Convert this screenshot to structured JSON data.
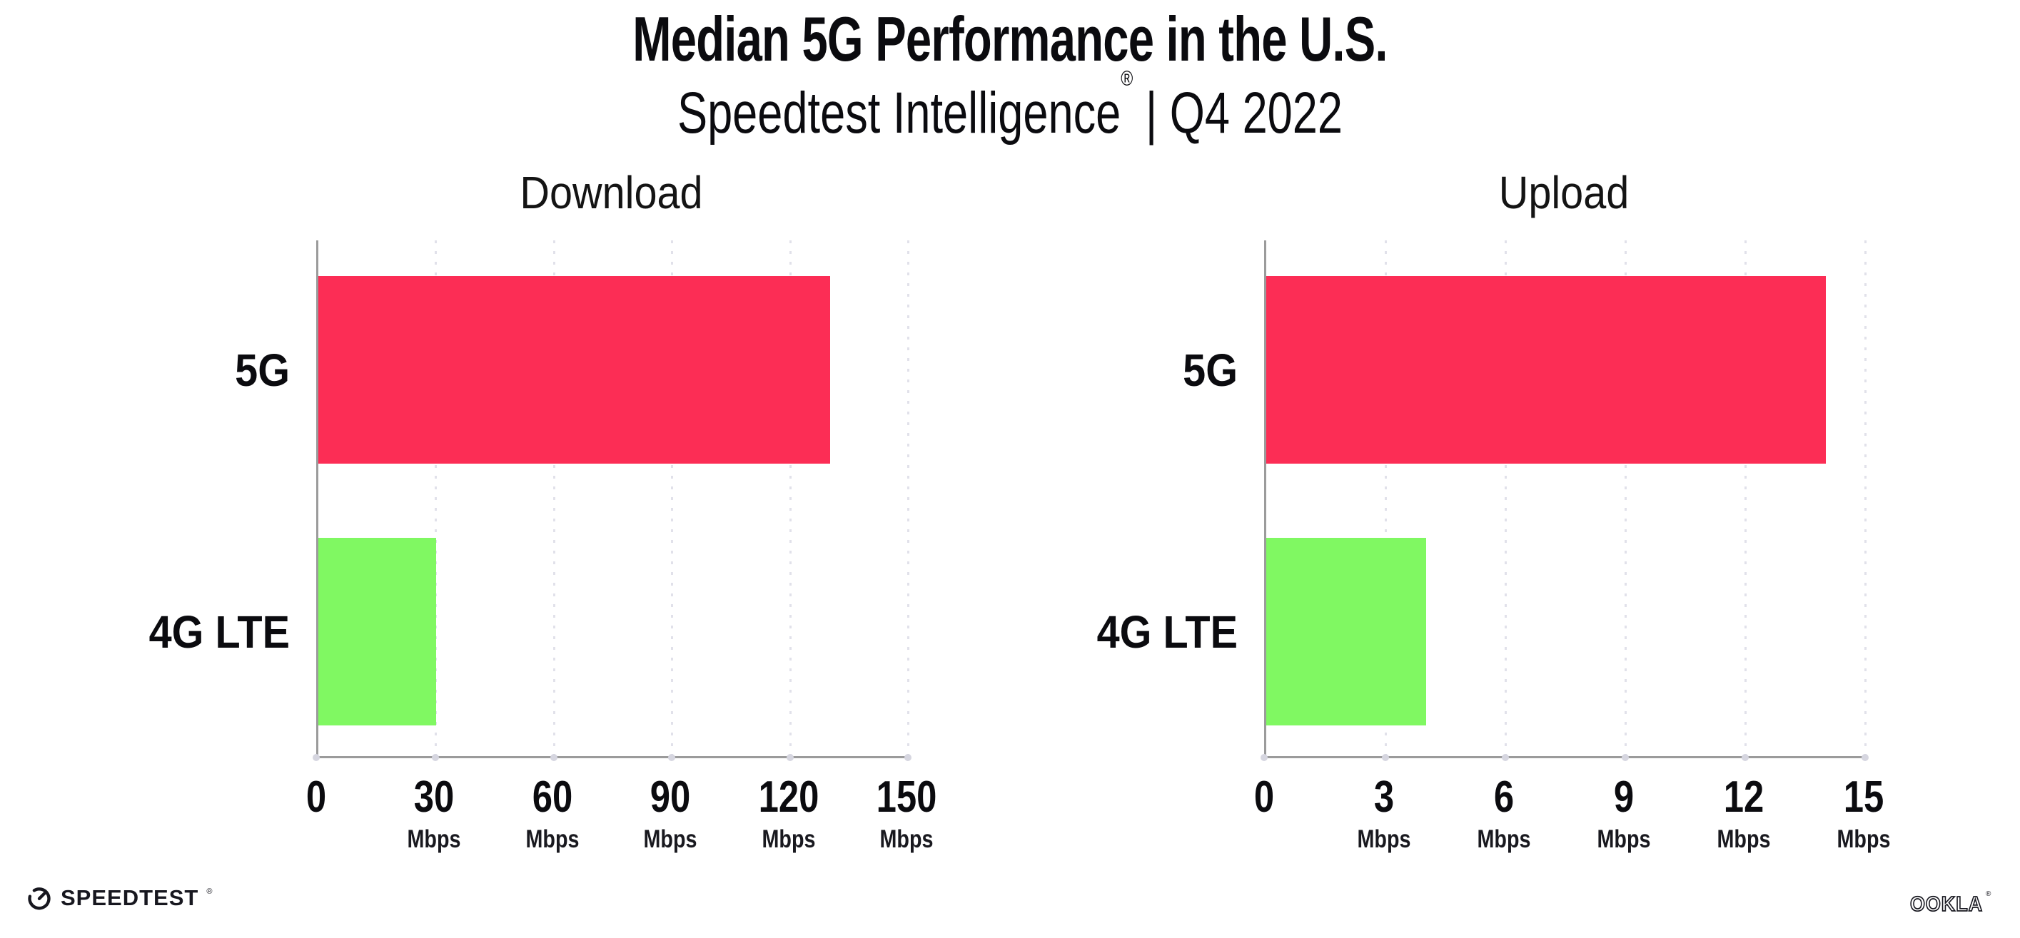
{
  "header": {
    "title": "Median 5G Performance in the U.S.",
    "subtitle": {
      "brand": "Speedtest Intelligence",
      "reg_mark": "®",
      "period": " | Q4 2022"
    }
  },
  "chart_data": [
    {
      "type": "bar",
      "orientation": "horizontal",
      "title": "Download",
      "categories": [
        "5G",
        "4G LTE"
      ],
      "values": [
        130,
        30
      ],
      "unit": "Mbps",
      "xlabel": "",
      "ylabel": "",
      "xlim": [
        0,
        150
      ],
      "xticks": [
        0,
        30,
        60,
        90,
        120,
        150
      ],
      "bar_colors": [
        "#FC2D55",
        "#80F862"
      ],
      "grid": "vertical-dotted",
      "legend": false
    },
    {
      "type": "bar",
      "orientation": "horizontal",
      "title": "Upload",
      "categories": [
        "5G",
        "4G LTE"
      ],
      "values": [
        14,
        4
      ],
      "unit": "Mbps",
      "xlabel": "",
      "ylabel": "",
      "xlim": [
        0,
        15
      ],
      "xticks": [
        0,
        3,
        6,
        9,
        12,
        15
      ],
      "bar_colors": [
        "#FC2D55",
        "#80F862"
      ],
      "grid": "vertical-dotted",
      "legend": false
    }
  ],
  "colors": {
    "bar_5g": "#FC2D55",
    "bar_4g_lte": "#80F862",
    "axis": "#9B9B9B",
    "gridline": "#E1E1EA",
    "text": "#0B0B0F"
  },
  "footer": {
    "speedtest": "SPEEDTEST",
    "ookla": "OOKLA",
    "reg_mark": "®"
  }
}
